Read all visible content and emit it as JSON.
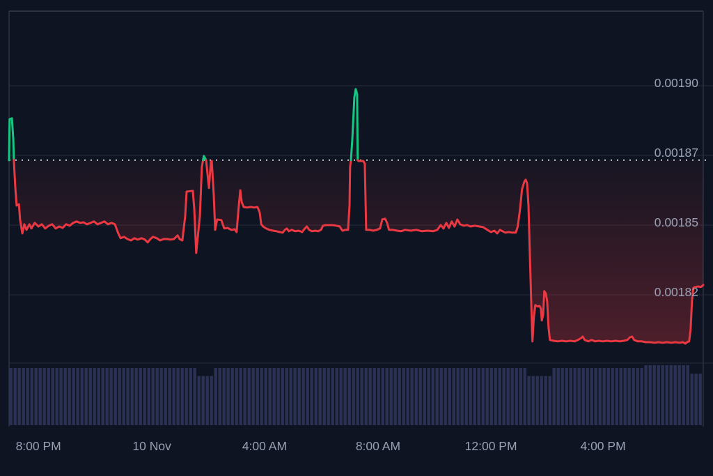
{
  "chart_data": {
    "type": "line",
    "title": "",
    "description": "Cryptocurrency price line chart over ~24h with volume bars",
    "x_axis": {
      "total_hours": 24.59,
      "ticks": [
        {
          "t": 1.04,
          "label": "8:00 PM"
        },
        {
          "t": 5.06,
          "label": "10 Nov"
        },
        {
          "t": 9.05,
          "label": "4:00 AM"
        },
        {
          "t": 13.07,
          "label": "8:00 AM"
        },
        {
          "t": 17.07,
          "label": "12:00 PM"
        },
        {
          "t": 21.04,
          "label": "4:00 PM"
        }
      ]
    },
    "y_axis": {
      "ticks": [
        {
          "value": 0.0019,
          "label": "0.00190"
        },
        {
          "value": 0.001875,
          "label": "0.00187"
        },
        {
          "value": 0.00185,
          "label": "0.00185"
        },
        {
          "value": 0.001825,
          "label": "0.00182"
        }
      ],
      "units_per_gridline": 2.5e-05
    },
    "baseline": {
      "value": 0.0018733,
      "style": "dotted"
    },
    "series": [
      {
        "name": "price",
        "points": [
          [
            0,
            0.0018733
          ],
          [
            0.02,
            0.001888
          ],
          [
            0.1,
            0.0018883
          ],
          [
            0.15,
            0.0018808
          ],
          [
            0.17,
            0.0018733
          ],
          [
            0.22,
            0.0018638
          ],
          [
            0.27,
            0.001857
          ],
          [
            0.35,
            0.0018575
          ],
          [
            0.39,
            0.001852
          ],
          [
            0.47,
            0.001847
          ],
          [
            0.54,
            0.0018503
          ],
          [
            0.62,
            0.0018483
          ],
          [
            0.72,
            0.0018503
          ],
          [
            0.79,
            0.0018488
          ],
          [
            0.91,
            0.0018508
          ],
          [
            1.04,
            0.0018495
          ],
          [
            1.16,
            0.0018503
          ],
          [
            1.28,
            0.0018488
          ],
          [
            1.41,
            0.0018498
          ],
          [
            1.53,
            0.0018503
          ],
          [
            1.65,
            0.0018488
          ],
          [
            1.78,
            0.0018495
          ],
          [
            1.9,
            0.001849
          ],
          [
            2.02,
            0.0018503
          ],
          [
            2.15,
            0.0018498
          ],
          [
            2.27,
            0.0018508
          ],
          [
            2.39,
            0.0018513
          ],
          [
            2.52,
            0.0018508
          ],
          [
            2.64,
            0.001851
          ],
          [
            2.76,
            0.0018503
          ],
          [
            2.89,
            0.0018508
          ],
          [
            3.01,
            0.0018513
          ],
          [
            3.13,
            0.0018503
          ],
          [
            3.26,
            0.0018508
          ],
          [
            3.38,
            0.0018513
          ],
          [
            3.5,
            0.0018503
          ],
          [
            3.63,
            0.0018508
          ],
          [
            3.75,
            0.0018503
          ],
          [
            3.87,
            0.001847
          ],
          [
            3.95,
            0.0018453
          ],
          [
            4.07,
            0.0018458
          ],
          [
            4.19,
            0.001845
          ],
          [
            4.32,
            0.0018445
          ],
          [
            4.44,
            0.0018453
          ],
          [
            4.56,
            0.0018448
          ],
          [
            4.69,
            0.0018453
          ],
          [
            4.81,
            0.0018448
          ],
          [
            4.91,
            0.0018438
          ],
          [
            5.01,
            0.001845
          ],
          [
            5.1,
            0.0018458
          ],
          [
            5.23,
            0.0018453
          ],
          [
            5.35,
            0.0018445
          ],
          [
            5.47,
            0.001845
          ],
          [
            5.6,
            0.001845
          ],
          [
            5.72,
            0.0018448
          ],
          [
            5.84,
            0.001845
          ],
          [
            5.97,
            0.0018463
          ],
          [
            6.04,
            0.001845
          ],
          [
            6.14,
            0.0018445
          ],
          [
            6.24,
            0.0018533
          ],
          [
            6.29,
            0.001862
          ],
          [
            6.51,
            0.0018623
          ],
          [
            6.56,
            0.0018558
          ],
          [
            6.63,
            0.00184
          ],
          [
            6.71,
            0.0018483
          ],
          [
            6.76,
            0.0018533
          ],
          [
            6.83,
            0.0018708
          ],
          [
            6.88,
            0.0018738
          ],
          [
            6.9,
            0.0018748
          ],
          [
            6.98,
            0.0018733
          ],
          [
            7.08,
            0.0018633
          ],
          [
            7.15,
            0.0018728
          ],
          [
            7.18,
            0.001873
          ],
          [
            7.25,
            0.0018608
          ],
          [
            7.3,
            0.0018483
          ],
          [
            7.37,
            0.001852
          ],
          [
            7.52,
            0.0018518
          ],
          [
            7.62,
            0.0018488
          ],
          [
            7.74,
            0.001849
          ],
          [
            7.87,
            0.0018483
          ],
          [
            7.99,
            0.0018485
          ],
          [
            8.06,
            0.0018475
          ],
          [
            8.14,
            0.001857
          ],
          [
            8.19,
            0.0018625
          ],
          [
            8.24,
            0.0018583
          ],
          [
            8.31,
            0.0018565
          ],
          [
            8.43,
            0.0018563
          ],
          [
            8.56,
            0.0018565
          ],
          [
            8.68,
            0.0018563
          ],
          [
            8.8,
            0.0018565
          ],
          [
            8.88,
            0.0018545
          ],
          [
            8.93,
            0.0018503
          ],
          [
            9,
            0.0018495
          ],
          [
            9.1,
            0.0018488
          ],
          [
            9.22,
            0.0018483
          ],
          [
            9.35,
            0.001848
          ],
          [
            9.47,
            0.0018478
          ],
          [
            9.59,
            0.0018475
          ],
          [
            9.69,
            0.0018473
          ],
          [
            9.77,
            0.0018483
          ],
          [
            9.84,
            0.0018488
          ],
          [
            9.91,
            0.0018478
          ],
          [
            10.01,
            0.0018483
          ],
          [
            10.14,
            0.0018478
          ],
          [
            10.26,
            0.001848
          ],
          [
            10.38,
            0.0018475
          ],
          [
            10.48,
            0.0018488
          ],
          [
            10.55,
            0.0018495
          ],
          [
            10.63,
            0.0018483
          ],
          [
            10.73,
            0.0018478
          ],
          [
            10.85,
            0.001848
          ],
          [
            10.95,
            0.0018478
          ],
          [
            11.05,
            0.0018483
          ],
          [
            11.12,
            0.0018498
          ],
          [
            11.22,
            0.00185
          ],
          [
            11.34,
            0.00185
          ],
          [
            11.47,
            0.00185
          ],
          [
            11.59,
            0.0018498
          ],
          [
            11.71,
            0.0018495
          ],
          [
            11.81,
            0.001848
          ],
          [
            11.91,
            0.0018483
          ],
          [
            12.01,
            0.0018483
          ],
          [
            12.06,
            0.001857
          ],
          [
            12.08,
            0.0018708
          ],
          [
            12.11,
            0.0018733
          ],
          [
            12.16,
            0.0018808
          ],
          [
            12.23,
            0.0018958
          ],
          [
            12.28,
            0.0018988
          ],
          [
            12.33,
            0.001897
          ],
          [
            12.35,
            0.0018733
          ],
          [
            12.38,
            0.001873
          ],
          [
            12.55,
            0.001873
          ],
          [
            12.6,
            0.001872
          ],
          [
            12.65,
            0.0018483
          ],
          [
            12.77,
            0.0018483
          ],
          [
            12.9,
            0.001848
          ],
          [
            13.02,
            0.0018483
          ],
          [
            13.14,
            0.0018488
          ],
          [
            13.22,
            0.001852
          ],
          [
            13.32,
            0.0018523
          ],
          [
            13.39,
            0.0018508
          ],
          [
            13.46,
            0.0018483
          ],
          [
            13.59,
            0.0018483
          ],
          [
            13.74,
            0.001848
          ],
          [
            13.88,
            0.0018478
          ],
          [
            14.03,
            0.0018483
          ],
          [
            14.23,
            0.001848
          ],
          [
            14.43,
            0.0018483
          ],
          [
            14.62,
            0.0018478
          ],
          [
            14.82,
            0.001848
          ],
          [
            15.02,
            0.0018478
          ],
          [
            15.17,
            0.0018483
          ],
          [
            15.29,
            0.00185
          ],
          [
            15.39,
            0.0018488
          ],
          [
            15.49,
            0.0018508
          ],
          [
            15.58,
            0.001849
          ],
          [
            15.68,
            0.0018513
          ],
          [
            15.78,
            0.0018495
          ],
          [
            15.88,
            0.001852
          ],
          [
            15.98,
            0.0018503
          ],
          [
            16.1,
            0.0018498
          ],
          [
            16.23,
            0.00185
          ],
          [
            16.35,
            0.0018495
          ],
          [
            16.5,
            0.0018498
          ],
          [
            16.65,
            0.0018495
          ],
          [
            16.79,
            0.0018493
          ],
          [
            16.94,
            0.0018483
          ],
          [
            17.07,
            0.0018475
          ],
          [
            17.19,
            0.001848
          ],
          [
            17.29,
            0.001847
          ],
          [
            17.39,
            0.0018483
          ],
          [
            17.48,
            0.0018478
          ],
          [
            17.58,
            0.0018473
          ],
          [
            17.7,
            0.0018475
          ],
          [
            17.83,
            0.0018473
          ],
          [
            17.95,
            0.0018473
          ],
          [
            18.02,
            0.0018495
          ],
          [
            18.1,
            0.0018558
          ],
          [
            18.17,
            0.0018628
          ],
          [
            18.25,
            0.0018655
          ],
          [
            18.3,
            0.0018663
          ],
          [
            18.35,
            0.001865
          ],
          [
            18.4,
            0.001857
          ],
          [
            18.45,
            0.0018383
          ],
          [
            18.5,
            0.0018208
          ],
          [
            18.54,
            0.0018083
          ],
          [
            18.59,
            0.001817
          ],
          [
            18.64,
            0.0018213
          ],
          [
            18.72,
            0.0018208
          ],
          [
            18.79,
            0.001821
          ],
          [
            18.84,
            0.00182
          ],
          [
            18.87,
            0.0018158
          ],
          [
            18.92,
            0.0018178
          ],
          [
            18.96,
            0.0018263
          ],
          [
            19.01,
            0.0018255
          ],
          [
            19.06,
            0.0018228
          ],
          [
            19.11,
            0.0018133
          ],
          [
            19.16,
            0.0018088
          ],
          [
            19.29,
            0.0018085
          ],
          [
            19.43,
            0.0018083
          ],
          [
            19.58,
            0.0018085
          ],
          [
            19.73,
            0.0018083
          ],
          [
            19.88,
            0.0018085
          ],
          [
            20.03,
            0.0018083
          ],
          [
            20.15,
            0.0018088
          ],
          [
            20.27,
            0.0018095
          ],
          [
            20.32,
            0.00181
          ],
          [
            20.39,
            0.0018088
          ],
          [
            20.52,
            0.0018083
          ],
          [
            20.64,
            0.0018088
          ],
          [
            20.76,
            0.0018083
          ],
          [
            20.89,
            0.0018085
          ],
          [
            21.03,
            0.0018083
          ],
          [
            21.18,
            0.0018085
          ],
          [
            21.33,
            0.0018083
          ],
          [
            21.48,
            0.0018085
          ],
          [
            21.63,
            0.0018083
          ],
          [
            21.77,
            0.0018085
          ],
          [
            21.9,
            0.0018088
          ],
          [
            22,
            0.0018098
          ],
          [
            22.07,
            0.00181
          ],
          [
            22.14,
            0.0018088
          ],
          [
            22.27,
            0.0018083
          ],
          [
            22.41,
            0.0018083
          ],
          [
            22.56,
            0.001808
          ],
          [
            22.71,
            0.001808
          ],
          [
            22.86,
            0.0018078
          ],
          [
            23.01,
            0.001808
          ],
          [
            23.15,
            0.0018078
          ],
          [
            23.3,
            0.001808
          ],
          [
            23.45,
            0.0018078
          ],
          [
            23.6,
            0.001808
          ],
          [
            23.75,
            0.0018078
          ],
          [
            23.87,
            0.001808
          ],
          [
            23.95,
            0.0018075
          ],
          [
            24.02,
            0.001808
          ],
          [
            24.09,
            0.0018083
          ],
          [
            24.14,
            0.0018125
          ],
          [
            24.19,
            0.0018228
          ],
          [
            24.24,
            0.0018275
          ],
          [
            24.31,
            0.0018278
          ],
          [
            24.41,
            0.001828
          ],
          [
            24.51,
            0.0018278
          ],
          [
            24.59,
            0.0018285
          ]
        ]
      }
    ],
    "volume_bars": {
      "note": "run-length encoded [bar_count, relative_height]",
      "runs": [
        [
          45,
          1
        ],
        [
          4,
          0.86
        ],
        [
          75,
          1
        ],
        [
          6,
          0.86
        ],
        [
          22,
          1
        ],
        [
          11,
          1.05
        ],
        [
          3,
          0.9
        ]
      ]
    },
    "layout": {
      "grid": true,
      "legend": false
    },
    "colors": {
      "up": "#16c784",
      "down": "#ea3943",
      "area_fill": "#ea3943",
      "volume": "#2b3154",
      "grid": "#262c3b",
      "frame": "#2c3342",
      "label": "#98a1b4",
      "baseline_dots": "#e6e9f0",
      "background": "#0e1421"
    }
  }
}
